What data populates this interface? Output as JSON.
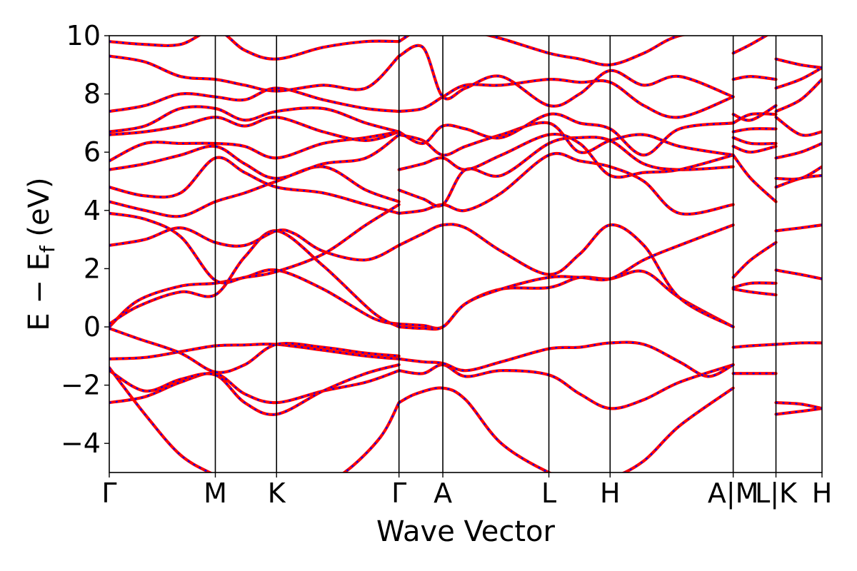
{
  "chart_data": {
    "type": "line",
    "title": "",
    "xlabel": "Wave Vector",
    "ylabel": "E − E_f (eV)",
    "ylabel_parts": {
      "main": "E − E",
      "sub": "f",
      "unit": " (eV)"
    },
    "ylim": [
      -5,
      10
    ],
    "yticks": [
      -4,
      -2,
      0,
      2,
      4,
      6,
      8,
      10
    ],
    "ytick_labels": [
      "−4",
      "−2",
      "0",
      "2",
      "4",
      "6",
      "8",
      "10"
    ],
    "x_range": [
      0,
      1
    ],
    "kpoints": [
      {
        "label": "Γ",
        "x": 0.0
      },
      {
        "label": "M",
        "x": 0.1488
      },
      {
        "label": "K",
        "x": 0.2347
      },
      {
        "label": "Γ",
        "x": 0.4065
      },
      {
        "label": "A",
        "x": 0.468
      },
      {
        "label": "L",
        "x": 0.6168
      },
      {
        "label": "H",
        "x": 0.7027
      },
      {
        "label": "A|M",
        "x": 0.8754
      },
      {
        "label": "L|K",
        "x": 0.9354
      },
      {
        "label": "H",
        "x": 1.0
      }
    ],
    "style": {
      "line_color": "#ff0000",
      "dash_color": "#0000ff",
      "grid": false
    },
    "series": [
      {
        "x": [
          0.0,
          0.05,
          0.1,
          0.1488,
          0.19,
          0.2347,
          0.28,
          0.33,
          0.38,
          0.4065
        ],
        "values": [
          -1.4,
          -3.0,
          -4.4,
          -5.1,
          -5.6,
          -5.9,
          -5.6,
          -5.0,
          -3.8,
          -2.6
        ]
      },
      {
        "x": [
          0.0,
          0.05,
          0.1,
          0.1488,
          0.19,
          0.2347,
          0.3,
          0.36,
          0.4065
        ],
        "values": [
          -2.6,
          -2.4,
          -1.9,
          -1.6,
          -2.3,
          -2.6,
          -2.2,
          -1.9,
          -1.5
        ]
      },
      {
        "x": [
          0.0,
          0.05,
          0.1,
          0.1488,
          0.19,
          0.2347,
          0.3,
          0.36,
          0.4065
        ],
        "values": [
          -1.5,
          -2.2,
          -1.8,
          -1.65,
          -2.6,
          -3.0,
          -2.2,
          -1.6,
          -1.3
        ]
      },
      {
        "x": [
          0.0,
          0.05,
          0.1,
          0.1488,
          0.19,
          0.2347,
          0.3,
          0.36,
          0.4065
        ],
        "values": [
          -1.1,
          -1.05,
          -0.85,
          -0.65,
          -0.62,
          -0.6,
          -0.8,
          -1.0,
          -1.1
        ]
      },
      {
        "x": [
          0.0,
          0.04,
          0.1,
          0.1488,
          0.19,
          0.2347,
          0.3,
          0.36,
          0.4065
        ],
        "values": [
          -0.05,
          -0.4,
          -0.9,
          -1.55,
          -1.3,
          -0.6,
          -0.7,
          -0.9,
          -1.0
        ]
      },
      {
        "x": [
          0.0,
          0.04,
          0.1,
          0.1488,
          0.19,
          0.2347,
          0.3,
          0.37,
          0.4065
        ],
        "values": [
          0.0,
          0.9,
          1.4,
          1.5,
          1.7,
          1.95,
          1.3,
          0.3,
          0.1
        ]
      },
      {
        "x": [
          0.0,
          0.04,
          0.1,
          0.1488,
          0.19,
          0.2347,
          0.3,
          0.37,
          0.4065
        ],
        "values": [
          0.1,
          0.7,
          1.2,
          1.1,
          2.4,
          3.3,
          2.1,
          0.5,
          0.0
        ]
      },
      {
        "x": [
          0.0,
          0.05,
          0.1,
          0.1488,
          0.19,
          0.2347,
          0.26,
          0.3,
          0.36,
          0.4065
        ],
        "values": [
          2.8,
          3.0,
          3.4,
          2.9,
          2.8,
          3.3,
          3.2,
          2.6,
          2.3,
          2.8
        ]
      },
      {
        "x": [
          0.0,
          0.05,
          0.1,
          0.1488,
          0.19,
          0.2347,
          0.3,
          0.36,
          0.4065
        ],
        "values": [
          3.9,
          3.7,
          3.1,
          1.6,
          1.7,
          1.9,
          2.5,
          3.5,
          4.2
        ]
      },
      {
        "x": [
          0.0,
          0.05,
          0.1,
          0.1488,
          0.19,
          0.2347,
          0.3,
          0.36,
          0.4065
        ],
        "values": [
          4.3,
          4.0,
          3.8,
          4.3,
          4.6,
          5.0,
          5.5,
          4.7,
          4.3
        ]
      },
      {
        "x": [
          0.0,
          0.05,
          0.1,
          0.1488,
          0.19,
          0.2347,
          0.3,
          0.36,
          0.4065
        ],
        "values": [
          4.8,
          4.5,
          4.6,
          5.8,
          5.3,
          4.8,
          4.6,
          4.2,
          3.9
        ]
      },
      {
        "x": [
          0.0,
          0.05,
          0.1,
          0.1488,
          0.19,
          0.2347,
          0.3,
          0.36,
          0.4065
        ],
        "values": [
          5.4,
          5.6,
          5.9,
          6.2,
          5.6,
          5.1,
          5.6,
          5.8,
          6.6
        ]
      },
      {
        "x": [
          0.0,
          0.05,
          0.1,
          0.1488,
          0.19,
          0.2347,
          0.3,
          0.36,
          0.4065
        ],
        "values": [
          5.7,
          6.3,
          6.3,
          6.3,
          6.2,
          5.8,
          6.3,
          6.5,
          6.7
        ]
      },
      {
        "x": [
          0.0,
          0.05,
          0.1,
          0.1488,
          0.19,
          0.2347,
          0.3,
          0.36,
          0.4065
        ],
        "values": [
          6.6,
          6.7,
          6.9,
          7.2,
          6.9,
          7.2,
          6.7,
          6.4,
          6.7
        ]
      },
      {
        "x": [
          0.0,
          0.05,
          0.1,
          0.1488,
          0.19,
          0.2347,
          0.3,
          0.36,
          0.4065
        ],
        "values": [
          6.7,
          6.9,
          7.5,
          7.5,
          7.1,
          7.4,
          7.5,
          7.0,
          6.7
        ]
      },
      {
        "x": [
          0.0,
          0.05,
          0.1,
          0.1488,
          0.19,
          0.2347,
          0.3,
          0.36,
          0.4065
        ],
        "values": [
          7.4,
          7.6,
          8.0,
          7.9,
          7.8,
          8.2,
          7.8,
          7.5,
          7.4
        ]
      },
      {
        "x": [
          0.0,
          0.05,
          0.1,
          0.1488,
          0.19,
          0.2347,
          0.3,
          0.36,
          0.4065
        ],
        "values": [
          9.3,
          9.1,
          8.6,
          8.5,
          8.3,
          8.1,
          8.3,
          8.2,
          9.3
        ]
      },
      {
        "x": [
          0.0,
          0.05,
          0.1,
          0.1488,
          0.19,
          0.2347,
          0.3,
          0.36,
          0.4065
        ],
        "values": [
          9.8,
          9.7,
          9.7,
          10.2,
          9.5,
          9.2,
          9.6,
          9.8,
          9.8
        ]
      },
      {
        "x": [
          0.4065,
          0.43,
          0.468,
          0.5,
          0.55,
          0.6168,
          0.66,
          0.7027,
          0.75,
          0.8,
          0.8754
        ],
        "values": [
          -2.6,
          -2.3,
          -2.1,
          -2.5,
          -4.0,
          -5.0,
          -5.3,
          -5.2,
          -4.6,
          -3.4,
          -2.1
        ]
      },
      {
        "x": [
          0.4065,
          0.44,
          0.468,
          0.5,
          0.55,
          0.6168,
          0.66,
          0.7027,
          0.75,
          0.8,
          0.8754
        ],
        "values": [
          -1.5,
          -1.6,
          -1.3,
          -1.7,
          -1.5,
          -1.65,
          -2.3,
          -2.8,
          -2.5,
          -1.9,
          -1.3
        ]
      },
      {
        "x": [
          0.4065,
          0.44,
          0.468,
          0.5,
          0.55,
          0.6168,
          0.66,
          0.7027,
          0.75,
          0.8,
          0.84,
          0.8754
        ],
        "values": [
          -1.1,
          -1.2,
          -1.25,
          -1.5,
          -1.2,
          -0.75,
          -0.7,
          -0.55,
          -0.6,
          -1.2,
          -1.7,
          -1.3
        ]
      },
      {
        "x": [
          0.4065,
          0.44,
          0.468,
          0.5,
          0.55,
          0.6168,
          0.66,
          0.7027,
          0.75,
          0.8,
          0.8754
        ],
        "values": [
          0.1,
          0.05,
          0.0,
          0.8,
          1.3,
          1.35,
          1.7,
          1.65,
          1.9,
          1.0,
          0.0
        ]
      },
      {
        "x": [
          0.4065,
          0.44,
          0.468,
          0.5,
          0.55,
          0.6168,
          0.66,
          0.7027,
          0.75,
          0.8,
          0.8754
        ],
        "values": [
          0.0,
          -0.05,
          0.0,
          0.8,
          1.3,
          1.7,
          1.7,
          1.65,
          2.3,
          2.8,
          3.5
        ]
      },
      {
        "x": [
          0.4065,
          0.44,
          0.468,
          0.5,
          0.55,
          0.6168,
          0.66,
          0.7027,
          0.75,
          0.8,
          0.8754
        ],
        "values": [
          2.8,
          3.2,
          3.5,
          3.4,
          2.6,
          1.8,
          2.5,
          3.5,
          2.8,
          1.0,
          0.0
        ]
      },
      {
        "x": [
          0.4065,
          0.44,
          0.468,
          0.5,
          0.55,
          0.6168,
          0.66,
          0.7027,
          0.75,
          0.8,
          0.8754
        ],
        "values": [
          3.9,
          4.0,
          4.2,
          4.0,
          4.6,
          5.9,
          5.7,
          5.5,
          5.0,
          3.9,
          4.2
        ]
      },
      {
        "x": [
          0.4065,
          0.44,
          0.468,
          0.5,
          0.55,
          0.6168,
          0.66,
          0.7027,
          0.75,
          0.8,
          0.8754
        ],
        "values": [
          4.7,
          4.4,
          4.2,
          5.4,
          5.2,
          6.3,
          6.5,
          6.4,
          5.6,
          5.4,
          5.5
        ]
      },
      {
        "x": [
          0.4065,
          0.44,
          0.468,
          0.5,
          0.55,
          0.6168,
          0.66,
          0.7027,
          0.75,
          0.8,
          0.8754
        ],
        "values": [
          5.4,
          5.6,
          5.8,
          5.4,
          5.9,
          6.6,
          6.3,
          5.2,
          5.3,
          5.4,
          5.9
        ]
      },
      {
        "x": [
          0.4065,
          0.44,
          0.468,
          0.5,
          0.55,
          0.6168,
          0.66,
          0.7027,
          0.75,
          0.8,
          0.8754
        ],
        "values": [
          6.6,
          6.4,
          5.9,
          6.2,
          6.6,
          7.0,
          6.0,
          6.4,
          6.6,
          6.2,
          5.9
        ]
      },
      {
        "x": [
          0.4065,
          0.44,
          0.468,
          0.5,
          0.55,
          0.6168,
          0.66,
          0.7027,
          0.75,
          0.8,
          0.8754
        ],
        "values": [
          6.7,
          6.3,
          6.9,
          6.8,
          6.5,
          7.3,
          7.0,
          6.8,
          5.9,
          6.8,
          7.0
        ]
      },
      {
        "x": [
          0.4065,
          0.44,
          0.468,
          0.5,
          0.55,
          0.6168,
          0.66,
          0.7027,
          0.75,
          0.8,
          0.8754
        ],
        "values": [
          7.4,
          7.5,
          7.9,
          8.3,
          8.3,
          8.5,
          8.4,
          8.4,
          7.6,
          7.2,
          7.9
        ]
      },
      {
        "x": [
          0.4065,
          0.44,
          0.468,
          0.5,
          0.55,
          0.6168,
          0.66,
          0.7027,
          0.75,
          0.8,
          0.8754
        ],
        "values": [
          9.3,
          9.6,
          7.9,
          8.2,
          8.6,
          7.6,
          8.0,
          8.8,
          8.3,
          8.6,
          7.9
        ]
      },
      {
        "x": [
          0.4065,
          0.44,
          0.468,
          0.5,
          0.55,
          0.6168,
          0.66,
          0.7027,
          0.75,
          0.8,
          0.8754
        ],
        "values": [
          9.8,
          10.3,
          10.4,
          10.2,
          9.9,
          9.4,
          9.2,
          9.0,
          9.4,
          10.0,
          10.2
        ]
      },
      {
        "x": [
          0.8754,
          0.9,
          0.9354
        ],
        "values": [
          -1.6,
          -1.6,
          -1.6
        ]
      },
      {
        "x": [
          0.8754,
          0.9,
          0.9354
        ],
        "values": [
          -0.7,
          -0.65,
          -0.6
        ]
      },
      {
        "x": [
          0.8754,
          0.9,
          0.9354
        ],
        "values": [
          1.3,
          1.2,
          1.1
        ]
      },
      {
        "x": [
          0.8754,
          0.9,
          0.9354
        ],
        "values": [
          1.35,
          1.5,
          1.5
        ]
      },
      {
        "x": [
          0.8754,
          0.9,
          0.9354
        ],
        "values": [
          1.7,
          2.3,
          2.9
        ]
      },
      {
        "x": [
          0.8754,
          0.9,
          0.9354
        ],
        "values": [
          5.9,
          5.1,
          4.3
        ]
      },
      {
        "x": [
          0.8754,
          0.9,
          0.9354
        ],
        "values": [
          6.2,
          6.0,
          6.2
        ]
      },
      {
        "x": [
          0.8754,
          0.9,
          0.9354
        ],
        "values": [
          6.5,
          6.3,
          6.3
        ]
      },
      {
        "x": [
          0.8754,
          0.9,
          0.9354
        ],
        "values": [
          6.7,
          6.8,
          6.8
        ]
      },
      {
        "x": [
          0.8754,
          0.9,
          0.9354
        ],
        "values": [
          7.0,
          7.3,
          7.3
        ]
      },
      {
        "x": [
          0.8754,
          0.9,
          0.9354
        ],
        "values": [
          7.3,
          7.1,
          7.6
        ]
      },
      {
        "x": [
          0.8754,
          0.9,
          0.9354
        ],
        "values": [
          8.5,
          8.6,
          8.5
        ]
      },
      {
        "x": [
          0.8754,
          0.9,
          0.9354
        ],
        "values": [
          9.4,
          9.7,
          10.2
        ]
      },
      {
        "x": [
          0.9354,
          0.97,
          1.0
        ],
        "values": [
          -2.6,
          -2.65,
          -2.8
        ]
      },
      {
        "x": [
          0.9354,
          0.97,
          1.0
        ],
        "values": [
          -3.0,
          -2.9,
          -2.8
        ]
      },
      {
        "x": [
          0.9354,
          0.97,
          1.0
        ],
        "values": [
          -0.6,
          -0.55,
          -0.55
        ]
      },
      {
        "x": [
          0.9354,
          0.97,
          1.0
        ],
        "values": [
          1.95,
          1.8,
          1.65
        ]
      },
      {
        "x": [
          0.9354,
          0.97,
          1.0
        ],
        "values": [
          3.3,
          3.4,
          3.5
        ]
      },
      {
        "x": [
          0.9354,
          0.97,
          1.0
        ],
        "values": [
          4.8,
          5.1,
          5.2
        ]
      },
      {
        "x": [
          0.9354,
          0.97,
          1.0
        ],
        "values": [
          5.1,
          5.1,
          5.5
        ]
      },
      {
        "x": [
          0.9354,
          0.97,
          1.0
        ],
        "values": [
          5.8,
          6.0,
          6.3
        ]
      },
      {
        "x": [
          0.9354,
          0.97,
          1.0
        ],
        "values": [
          7.2,
          6.6,
          6.7
        ]
      },
      {
        "x": [
          0.9354,
          0.97,
          1.0
        ],
        "values": [
          7.4,
          7.8,
          8.5
        ]
      },
      {
        "x": [
          0.9354,
          0.97,
          1.0
        ],
        "values": [
          8.2,
          8.5,
          8.9
        ]
      },
      {
        "x": [
          0.9354,
          0.97,
          1.0
        ],
        "values": [
          9.2,
          9.0,
          8.9
        ]
      }
    ]
  }
}
